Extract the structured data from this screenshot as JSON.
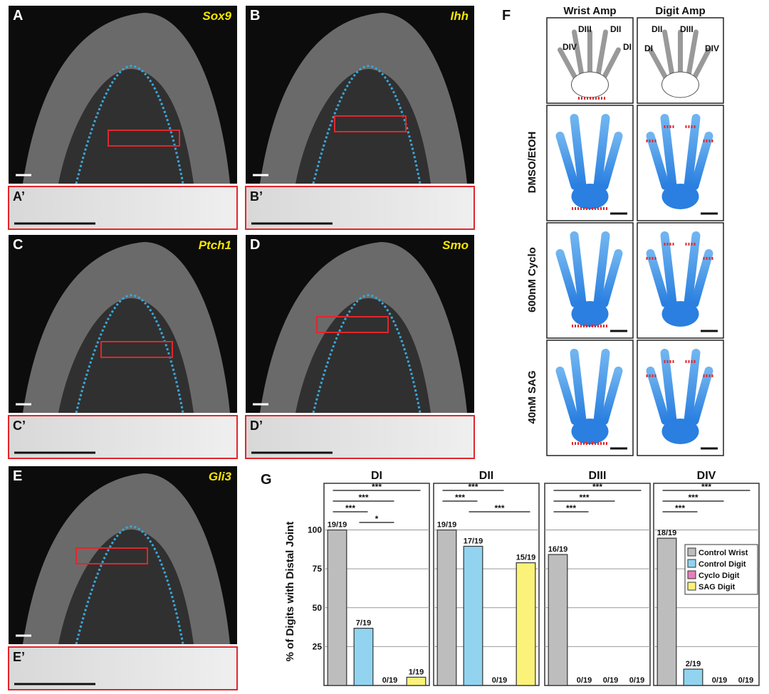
{
  "panels": {
    "A": {
      "letter": "A",
      "gene": "Sox9",
      "inset": "A’"
    },
    "B": {
      "letter": "B",
      "gene": "Ihh",
      "inset": "B’"
    },
    "C": {
      "letter": "C",
      "gene": "Ptch1",
      "inset": "C’"
    },
    "D": {
      "letter": "D",
      "gene": "Smo",
      "inset": "D’"
    },
    "E": {
      "letter": "E",
      "gene": "Gli3",
      "inset": "E’"
    }
  },
  "panel_f": {
    "letter": "F",
    "columns": [
      "Wrist Amp",
      "Digit Amp"
    ],
    "rows": [
      "DMSO/EtOH",
      "600nM Cyclo",
      "40nM SAG"
    ],
    "wrist_digits": [
      "DIII",
      "DII",
      "DIV",
      "DI"
    ],
    "digit_digits": [
      "DII",
      "DIII",
      "DI",
      "DIV"
    ]
  },
  "panel_g": {
    "letter": "G"
  },
  "chart_data": [
    {
      "type": "bar",
      "title": "DI",
      "ylabel": "% of Digits with Distal Joint",
      "categories": [
        "Control Wrist",
        "Control Digit",
        "Cyclo Digit",
        "SAG Digit"
      ],
      "colors": [
        "#bdbdbd",
        "#92d4f0",
        "#e67fb9",
        "#fbf27a"
      ],
      "values": [
        100,
        36.8,
        0,
        5.3
      ],
      "value_labels": [
        "19/19",
        "7/19",
        "0/19",
        "1/19"
      ],
      "annotations": [
        "***",
        "***",
        "***",
        "*"
      ],
      "ylim": [
        0,
        130
      ],
      "yticks": [
        25,
        50,
        75,
        100
      ],
      "grid": true
    },
    {
      "type": "bar",
      "title": "DII",
      "categories": [
        "Control Wrist",
        "Control Digit",
        "Cyclo Digit",
        "SAG Digit"
      ],
      "colors": [
        "#bdbdbd",
        "#92d4f0",
        "#e67fb9",
        "#fbf27a"
      ],
      "values": [
        100,
        89.5,
        0,
        78.9
      ],
      "value_labels": [
        "19/19",
        "17/19",
        "0/19",
        "15/19"
      ],
      "annotations": [
        "***",
        "***",
        "***"
      ],
      "ylim": [
        0,
        130
      ],
      "yticks": [
        25,
        50,
        75,
        100
      ],
      "grid": true
    },
    {
      "type": "bar",
      "title": "DIII",
      "categories": [
        "Control Wrist",
        "Control Digit",
        "Cyclo Digit",
        "SAG Digit"
      ],
      "colors": [
        "#bdbdbd",
        "#92d4f0",
        "#e67fb9",
        "#fbf27a"
      ],
      "values": [
        84.2,
        0,
        0,
        0
      ],
      "value_labels": [
        "16/19",
        "0/19",
        "0/19",
        "0/19"
      ],
      "annotations": [
        "***",
        "***",
        "***"
      ],
      "ylim": [
        0,
        130
      ],
      "yticks": [
        25,
        50,
        75,
        100
      ],
      "grid": true
    },
    {
      "type": "bar",
      "title": "DIV",
      "categories": [
        "Control Wrist",
        "Control Digit",
        "Cyclo Digit",
        "SAG Digit"
      ],
      "colors": [
        "#bdbdbd",
        "#92d4f0",
        "#e67fb9",
        "#fbf27a"
      ],
      "values": [
        94.7,
        10.5,
        0,
        0
      ],
      "value_labels": [
        "18/19",
        "2/19",
        "0/19",
        "0/19"
      ],
      "annotations": [
        "***",
        "***",
        "***"
      ],
      "ylim": [
        0,
        130
      ],
      "yticks": [
        25,
        50,
        75,
        100
      ],
      "grid": true,
      "legend": true
    }
  ]
}
